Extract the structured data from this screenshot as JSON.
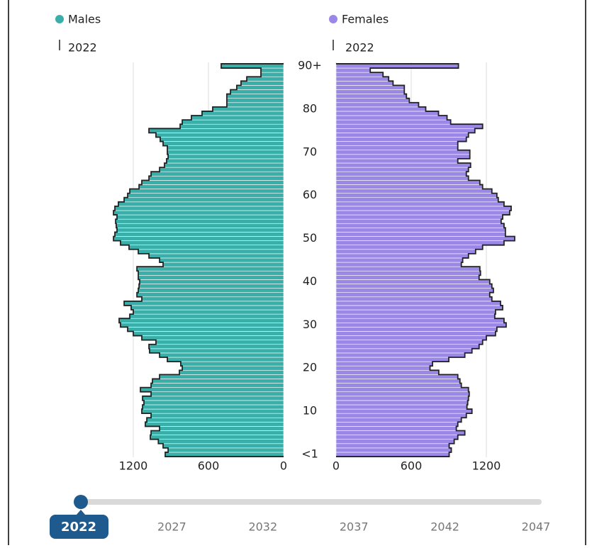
{
  "chart_data": [
    {
      "type": "bar",
      "orientation": "horizontal",
      "direction": "left",
      "name": "Males",
      "color": "#3aafa9",
      "reference_year": "2022",
      "categories": [
        "<1",
        null,
        null,
        null,
        null,
        null,
        null,
        null,
        null,
        null,
        "10",
        null,
        null,
        null,
        null,
        null,
        null,
        null,
        null,
        null,
        "20",
        null,
        null,
        null,
        null,
        null,
        null,
        null,
        null,
        null,
        "30",
        null,
        null,
        null,
        null,
        null,
        null,
        null,
        null,
        null,
        "40",
        null,
        null,
        null,
        null,
        null,
        null,
        null,
        null,
        null,
        "50",
        null,
        null,
        null,
        null,
        null,
        null,
        null,
        null,
        null,
        "60",
        null,
        null,
        null,
        null,
        null,
        null,
        null,
        null,
        null,
        "70",
        null,
        null,
        null,
        null,
        null,
        null,
        null,
        null,
        null,
        "80",
        null,
        null,
        null,
        null,
        null,
        null,
        null,
        null,
        null,
        "90+"
      ],
      "values": [
        945,
        922,
        962,
        1000,
        1064,
        1058,
        990,
        1104,
        1092,
        1058,
        1132,
        1126,
        1115,
        1126,
        1058,
        1143,
        1058,
        1047,
        990,
        832,
        809,
        821,
        928,
        990,
        1070,
        1075,
        1019,
        1132,
        1200,
        1245,
        1302,
        1313,
        1228,
        1200,
        1217,
        1273,
        1132,
        1171,
        1160,
        1154,
        1149,
        1160,
        1160,
        1171,
        962,
        990,
        1075,
        1160,
        1234,
        1302,
        1358,
        1347,
        1330,
        1336,
        1341,
        1330,
        1358,
        1347,
        1319,
        1273,
        1245,
        1228,
        1154,
        1132,
        1075,
        1058,
        990,
        951,
        934,
        922,
        928,
        928,
        962,
        985,
        1019,
        1075,
        826,
        809,
        736,
        651,
        566,
        453,
        453,
        453,
        424,
        374,
        340,
        294,
        181,
        181,
        498
      ],
      "xlim": [
        0,
        1500
      ],
      "xticks": [
        0,
        600,
        1200
      ],
      "grid": true
    },
    {
      "type": "bar",
      "orientation": "horizontal",
      "direction": "right",
      "name": "Females",
      "color": "#9b87e6",
      "reference_year": "2022",
      "values": [
        903,
        920,
        903,
        943,
        972,
        1028,
        960,
        972,
        1000,
        1040,
        1085,
        1045,
        1051,
        1057,
        1063,
        1057,
        1000,
        989,
        972,
        820,
        750,
        770,
        900,
        1028,
        1085,
        1142,
        1170,
        1200,
        1273,
        1284,
        1358,
        1341,
        1267,
        1273,
        1330,
        1313,
        1244,
        1227,
        1256,
        1244,
        1227,
        1142,
        1153,
        1148,
        1000,
        1011,
        1057,
        1114,
        1170,
        1341,
        1426,
        1352,
        1352,
        1341,
        1318,
        1330,
        1386,
        1398,
        1341,
        1295,
        1284,
        1244,
        1170,
        1148,
        1057,
        1040,
        1057,
        1074,
        972,
        1068,
        1068,
        972,
        972,
        1040,
        1057,
        1108,
        1170,
        915,
        886,
        818,
        716,
        659,
        585,
        562,
        545,
        545,
        455,
        420,
        375,
        273,
        977
      ],
      "xlim": [
        0,
        1500
      ],
      "xticks": [
        0,
        600,
        1200
      ],
      "grid": true
    }
  ],
  "slider": {
    "value": 2022,
    "range": [
      2022,
      2047
    ],
    "ticks": [
      2027,
      2032,
      2037,
      2042,
      2047
    ]
  }
}
